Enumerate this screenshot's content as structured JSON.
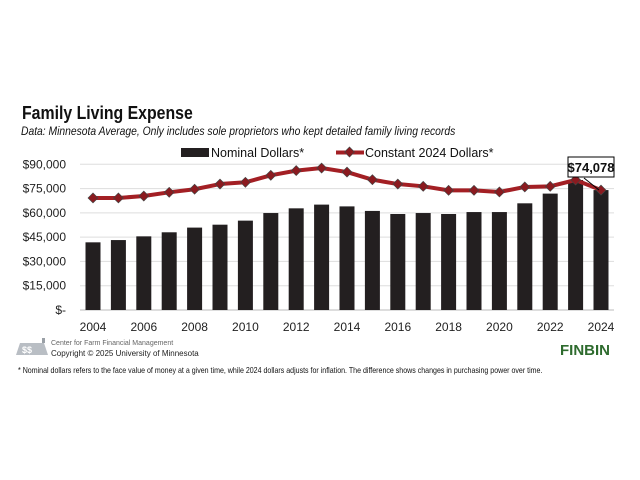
{
  "chart_data": {
    "type": "bar",
    "title": "Family Living Expense",
    "subtitle": "Data: Minnesota Average, Only includes sole proprietors who kept detailed family living records",
    "categories": [
      "2004",
      "2005",
      "2006",
      "2007",
      "2008",
      "2009",
      "2010",
      "2011",
      "2012",
      "2013",
      "2014",
      "2015",
      "2016",
      "2017",
      "2018",
      "2019",
      "2020",
      "2021",
      "2022",
      "2023",
      "2024"
    ],
    "x_tick_labels": [
      "2004",
      "2006",
      "2008",
      "2010",
      "2012",
      "2014",
      "2016",
      "2018",
      "2020",
      "2022",
      "2024"
    ],
    "y_tick_labels": [
      "$-",
      "$15,000",
      "$30,000",
      "$45,000",
      "$60,000",
      "$75,000",
      "$90,000"
    ],
    "ylim": [
      0,
      90000
    ],
    "grid": true,
    "legend_position": "top",
    "series": [
      {
        "name": "Nominal Dollars*",
        "type": "bar",
        "color": "#231f20",
        "values": [
          41800,
          43200,
          45500,
          48000,
          50900,
          52700,
          55200,
          59900,
          62800,
          65100,
          64000,
          61200,
          59300,
          59900,
          59300,
          60500,
          60500,
          65900,
          71900,
          80300,
          74078
        ]
      },
      {
        "name": "Constant 2024 Dollars*",
        "type": "line",
        "color": "#a31f24",
        "marker_color": "#8b1a1f",
        "values": [
          69200,
          69200,
          70400,
          72700,
          74600,
          77800,
          78900,
          83200,
          86100,
          87700,
          85200,
          80500,
          77800,
          76400,
          73900,
          73900,
          72900,
          76000,
          76400,
          80300,
          74078
        ]
      }
    ],
    "annotation": "$74,078"
  },
  "footer": {
    "org": "Center for Farm Financial Management",
    "copyright": "Copyright © 2025 University of Minnesota",
    "brand": "FINBIN",
    "footnote": "* Nominal dollars refers to the face value of money at a given time, while 2024 dollars adjusts for inflation. The difference shows changes in purchasing power over time."
  }
}
